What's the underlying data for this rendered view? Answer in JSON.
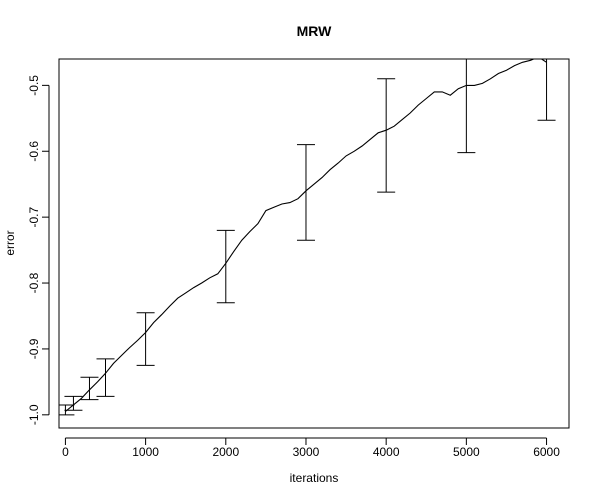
{
  "chart_data": {
    "type": "line",
    "title": "MRW",
    "xlabel": "iterations",
    "ylabel": "error",
    "xlim": [
      -80,
      6280
    ],
    "ylim": [
      -1.02,
      -0.46
    ],
    "x_ticks": [
      0,
      1000,
      2000,
      3000,
      4000,
      5000,
      6000
    ],
    "x_tick_labels": [
      "0",
      "1000",
      "2000",
      "3000",
      "4000",
      "5000",
      "6000"
    ],
    "y_ticks": [
      -1.0,
      -0.9,
      -0.8,
      -0.7,
      -0.6,
      -0.5
    ],
    "y_tick_labels": [
      "-1.0",
      "-0.9",
      "-0.8",
      "-0.7",
      "-0.6",
      "-0.5"
    ],
    "grid": false,
    "legend": "none",
    "series": [
      {
        "x": [
          0,
          100,
          200,
          300,
          400,
          500,
          600,
          700,
          800,
          900,
          1000,
          1100,
          1200,
          1300,
          1400,
          1500,
          1600,
          1700,
          1800,
          1900,
          2000,
          2100,
          2200,
          2300,
          2400,
          2500,
          2600,
          2700,
          2800,
          2900,
          3000,
          3100,
          3200,
          3300,
          3400,
          3500,
          3600,
          3700,
          3800,
          3900,
          4000,
          4100,
          4200,
          4300,
          4400,
          4500,
          4600,
          4700,
          4800,
          4900,
          5000,
          5100,
          5200,
          5300,
          5400,
          5500,
          5600,
          5700,
          5800,
          5900,
          6000
        ],
        "values": [
          -0.995,
          -0.985,
          -0.975,
          -0.962,
          -0.95,
          -0.937,
          -0.922,
          -0.91,
          -0.898,
          -0.887,
          -0.875,
          -0.86,
          -0.848,
          -0.835,
          -0.823,
          -0.815,
          -0.807,
          -0.8,
          -0.792,
          -0.786,
          -0.77,
          -0.752,
          -0.735,
          -0.722,
          -0.71,
          -0.69,
          -0.685,
          -0.68,
          -0.678,
          -0.672,
          -0.66,
          -0.65,
          -0.64,
          -0.628,
          -0.618,
          -0.607,
          -0.6,
          -0.592,
          -0.582,
          -0.572,
          -0.568,
          -0.562,
          -0.552,
          -0.542,
          -0.53,
          -0.52,
          -0.51,
          -0.51,
          -0.515,
          -0.505,
          -0.5,
          -0.5,
          -0.497,
          -0.49,
          -0.482,
          -0.477,
          -0.47,
          -0.465,
          -0.462,
          -0.457,
          -0.465
        ]
      }
    ],
    "error_bars": [
      {
        "x": 0,
        "low": -1.0,
        "high": -0.985
      },
      {
        "x": 100,
        "low": -0.993,
        "high": -0.972
      },
      {
        "x": 300,
        "low": -0.977,
        "high": -0.943
      },
      {
        "x": 500,
        "low": -0.972,
        "high": -0.915
      },
      {
        "x": 1000,
        "low": -0.925,
        "high": -0.845
      },
      {
        "x": 2000,
        "low": -0.83,
        "high": -0.72
      },
      {
        "x": 3000,
        "low": -0.735,
        "high": -0.59
      },
      {
        "x": 4000,
        "low": -0.662,
        "high": -0.49
      },
      {
        "x": 5000,
        "low": -0.602,
        "high": -0.445
      },
      {
        "x": 6000,
        "low": -0.553,
        "high": -0.44
      }
    ]
  }
}
